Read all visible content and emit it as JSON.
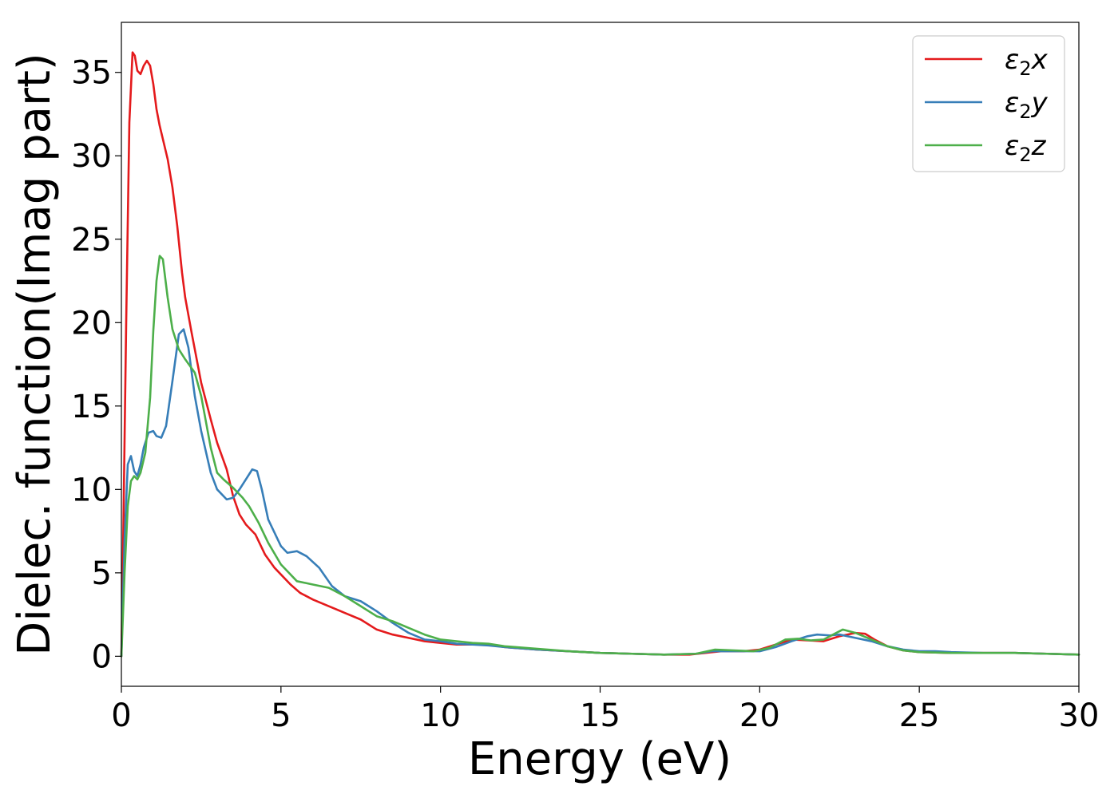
{
  "chart_data": {
    "type": "line",
    "title": "",
    "xlabel": "Energy (eV)",
    "ylabel": "Dielec. function(Imag part)",
    "xlim": [
      0,
      30
    ],
    "ylim": [
      -1.8,
      38
    ],
    "xticks": [
      0,
      5,
      10,
      15,
      20,
      25,
      30
    ],
    "yticks": [
      0,
      5,
      10,
      15,
      20,
      25,
      30,
      35
    ],
    "grid": false,
    "legend_position": "top-right",
    "series": [
      {
        "name": "ε2x",
        "symbol": "ε",
        "sub": "2",
        "suffix": "x",
        "color": "#e41a1c",
        "x": [
          0,
          0.05,
          0.15,
          0.25,
          0.35,
          0.42,
          0.5,
          0.6,
          0.7,
          0.8,
          0.9,
          1.0,
          1.1,
          1.2,
          1.3,
          1.45,
          1.6,
          1.75,
          1.9,
          2.0,
          2.2,
          2.5,
          2.8,
          3.0,
          3.3,
          3.5,
          3.7,
          3.9,
          4.2,
          4.5,
          4.8,
          5.0,
          5.3,
          5.6,
          6.0,
          6.5,
          7.0,
          7.5,
          8.0,
          8.5,
          9.0,
          9.5,
          10.0,
          10.5,
          11.0,
          11.5,
          12.0,
          13.0,
          14.0,
          15.0,
          16.0,
          17.0,
          17.8,
          18.3,
          18.8,
          19.5,
          20.0,
          20.5,
          21.0,
          21.5,
          22.0,
          22.5,
          23.0,
          23.3,
          23.6,
          24.0,
          24.5,
          25.0,
          26.0,
          27.0,
          28.0,
          29.0,
          30.0
        ],
        "y": [
          0,
          6,
          20,
          32,
          36.2,
          36.0,
          35.1,
          34.9,
          35.4,
          35.7,
          35.4,
          34.3,
          32.8,
          31.8,
          31.0,
          29.8,
          28.1,
          25.8,
          23.0,
          21.5,
          19.4,
          16.4,
          14.2,
          12.8,
          11.2,
          9.6,
          8.5,
          7.9,
          7.3,
          6.1,
          5.3,
          4.9,
          4.3,
          3.8,
          3.4,
          3.0,
          2.6,
          2.2,
          1.6,
          1.3,
          1.1,
          0.9,
          0.8,
          0.7,
          0.7,
          0.7,
          0.55,
          0.4,
          0.3,
          0.2,
          0.15,
          0.1,
          0.1,
          0.2,
          0.3,
          0.3,
          0.4,
          0.7,
          1.0,
          0.95,
          0.9,
          1.2,
          1.4,
          1.35,
          1.0,
          0.6,
          0.35,
          0.25,
          0.2,
          0.2,
          0.2,
          0.15,
          0.1
        ]
      },
      {
        "name": "ε2y",
        "symbol": "ε",
        "sub": "2",
        "suffix": "y",
        "color": "#377eb8",
        "x": [
          0,
          0.1,
          0.2,
          0.3,
          0.4,
          0.5,
          0.6,
          0.7,
          0.85,
          1.0,
          1.1,
          1.25,
          1.4,
          1.6,
          1.8,
          1.95,
          2.1,
          2.3,
          2.5,
          2.8,
          3.0,
          3.3,
          3.5,
          3.7,
          3.9,
          4.1,
          4.25,
          4.4,
          4.6,
          5.0,
          5.2,
          5.5,
          5.8,
          6.2,
          6.6,
          7.0,
          7.5,
          8.0,
          8.5,
          9.0,
          9.5,
          10.0,
          10.5,
          11.0,
          11.5,
          12.0,
          13.0,
          14.0,
          15.0,
          16.0,
          17.0,
          18.0,
          18.5,
          19.0,
          19.5,
          20.0,
          20.5,
          21.0,
          21.5,
          21.8,
          22.2,
          22.5,
          23.0,
          23.5,
          24.0,
          24.5,
          25.0,
          25.5,
          26.0,
          27.0,
          28.0,
          29.0,
          30.0
        ],
        "y": [
          0,
          7,
          11.5,
          12.0,
          11.1,
          10.8,
          11.5,
          12.5,
          13.4,
          13.5,
          13.2,
          13.1,
          13.8,
          16.5,
          19.3,
          19.6,
          18.5,
          15.6,
          13.5,
          11.0,
          10.0,
          9.4,
          9.5,
          10.0,
          10.6,
          11.2,
          11.1,
          10.0,
          8.2,
          6.6,
          6.2,
          6.3,
          6.0,
          5.3,
          4.2,
          3.6,
          3.3,
          2.7,
          2.0,
          1.4,
          1.0,
          0.9,
          0.75,
          0.7,
          0.65,
          0.55,
          0.4,
          0.3,
          0.2,
          0.15,
          0.1,
          0.15,
          0.3,
          0.3,
          0.3,
          0.3,
          0.55,
          0.9,
          1.2,
          1.3,
          1.25,
          1.3,
          1.1,
          0.9,
          0.6,
          0.4,
          0.3,
          0.3,
          0.25,
          0.2,
          0.2,
          0.15,
          0.1
        ]
      },
      {
        "name": "ε2z",
        "symbol": "ε",
        "sub": "2",
        "suffix": "z",
        "color": "#4daf4a",
        "x": [
          0,
          0.1,
          0.2,
          0.3,
          0.4,
          0.5,
          0.6,
          0.75,
          0.9,
          1.0,
          1.1,
          1.2,
          1.3,
          1.45,
          1.6,
          1.8,
          2.0,
          2.3,
          2.5,
          2.8,
          3.0,
          3.2,
          3.5,
          3.8,
          4.0,
          4.3,
          4.6,
          5.0,
          5.5,
          6.0,
          6.5,
          7.0,
          7.5,
          8.0,
          8.5,
          9.0,
          9.5,
          10.0,
          10.5,
          11.0,
          11.5,
          12.0,
          13.0,
          14.0,
          15.0,
          16.0,
          17.0,
          18.0,
          18.6,
          19.2,
          19.8,
          20.3,
          20.8,
          21.2,
          21.6,
          22.0,
          22.3,
          22.6,
          23.0,
          23.5,
          24.0,
          24.5,
          25.0,
          26.0,
          27.0,
          28.0,
          29.0,
          30.0
        ],
        "y": [
          0,
          5,
          9,
          10.5,
          10.8,
          10.6,
          11.0,
          12.2,
          15.5,
          19.5,
          22.5,
          24.0,
          23.8,
          21.5,
          19.6,
          18.4,
          17.8,
          17.0,
          15.6,
          12.5,
          11.0,
          10.6,
          10.1,
          9.5,
          9.0,
          8.0,
          6.8,
          5.5,
          4.5,
          4.3,
          4.1,
          3.6,
          3.0,
          2.4,
          2.1,
          1.7,
          1.3,
          1.0,
          0.9,
          0.8,
          0.75,
          0.6,
          0.45,
          0.3,
          0.2,
          0.15,
          0.1,
          0.15,
          0.4,
          0.35,
          0.3,
          0.5,
          1.0,
          1.05,
          0.95,
          1.0,
          1.3,
          1.6,
          1.4,
          1.0,
          0.6,
          0.35,
          0.25,
          0.2,
          0.2,
          0.2,
          0.15,
          0.1
        ]
      }
    ]
  }
}
